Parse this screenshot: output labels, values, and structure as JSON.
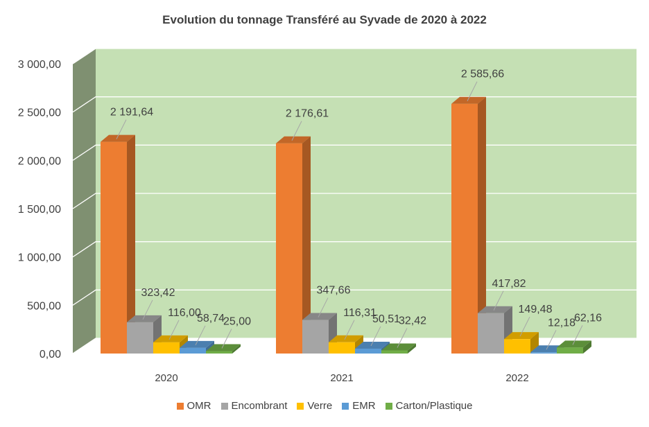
{
  "chart_data": {
    "type": "bar",
    "title": "Evolution du tonnage Transféré au Syvade de 2020 à 2022",
    "categories": [
      "2020",
      "2021",
      "2022"
    ],
    "series": [
      {
        "name": "OMR",
        "color": "#ED7D31",
        "values": [
          2191.64,
          2176.61,
          2585.66
        ],
        "labels": [
          "2 191,64",
          "2 176,61",
          "2 585,66"
        ]
      },
      {
        "name": "Encombrant",
        "color": "#A5A5A5",
        "values": [
          323.42,
          347.66,
          417.82
        ],
        "labels": [
          "323,42",
          "347,66",
          "417,82"
        ]
      },
      {
        "name": "Verre",
        "color": "#FFC000",
        "values": [
          116.0,
          116.31,
          149.48
        ],
        "labels": [
          "116,00",
          "116,31",
          "149,48"
        ]
      },
      {
        "name": "EMR",
        "color": "#5B9BD5",
        "values": [
          58.74,
          50.51,
          12.18
        ],
        "labels": [
          "58,74",
          "50,51",
          "12,18"
        ]
      },
      {
        "name": "Carton/Plastique",
        "color": "#70AD47",
        "values": [
          25.0,
          32.42,
          62.16
        ],
        "labels": [
          "25,00",
          "32,42",
          "62,16"
        ]
      }
    ],
    "ylim": [
      0,
      3000
    ],
    "yticks": [
      0,
      500,
      1000,
      1500,
      2000,
      2500,
      3000
    ],
    "ytick_labels": [
      "0,00",
      "500,00",
      "1 000,00",
      "1 500,00",
      "2 000,00",
      "2 500,00",
      "3 000,00"
    ],
    "xlabel": "",
    "ylabel": "",
    "grid": true,
    "legend": "bottom",
    "wall_color": "#C5E0B4",
    "side_wall_color": "#7F9071"
  }
}
